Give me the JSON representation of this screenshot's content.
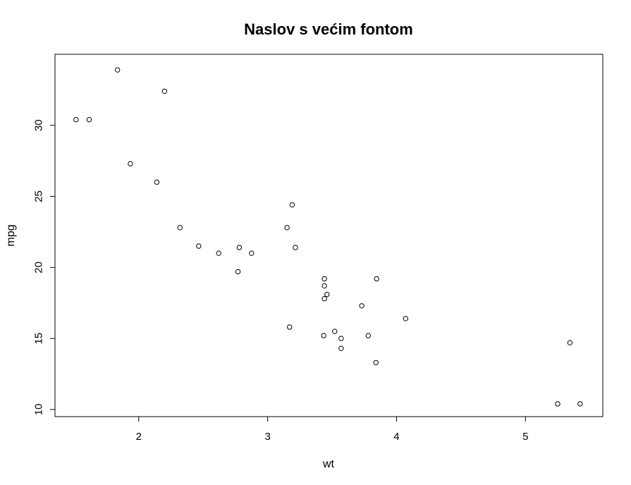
{
  "chart_data": {
    "type": "scatter",
    "title": "Naslov s većim fontom",
    "xlabel": "wt",
    "ylabel": "mpg",
    "xlim": [
      1.35,
      5.6
    ],
    "ylim": [
      9.5,
      35.0
    ],
    "xticks": [
      2,
      3,
      4,
      5
    ],
    "yticks": [
      10,
      15,
      20,
      25,
      30
    ],
    "grid": false,
    "legend": "none",
    "marker": "open-circle",
    "color": "#000000",
    "points": [
      {
        "x": 2.62,
        "y": 21.0
      },
      {
        "x": 2.875,
        "y": 21.0
      },
      {
        "x": 2.32,
        "y": 22.8
      },
      {
        "x": 3.215,
        "y": 21.4
      },
      {
        "x": 3.44,
        "y": 18.7
      },
      {
        "x": 3.46,
        "y": 18.1
      },
      {
        "x": 3.57,
        "y": 14.3
      },
      {
        "x": 3.19,
        "y": 24.4
      },
      {
        "x": 3.15,
        "y": 22.8
      },
      {
        "x": 3.44,
        "y": 19.2
      },
      {
        "x": 3.44,
        "y": 17.8
      },
      {
        "x": 4.07,
        "y": 16.4
      },
      {
        "x": 3.73,
        "y": 17.3
      },
      {
        "x": 3.78,
        "y": 15.2
      },
      {
        "x": 5.25,
        "y": 10.4
      },
      {
        "x": 5.424,
        "y": 10.4
      },
      {
        "x": 5.345,
        "y": 14.7
      },
      {
        "x": 2.2,
        "y": 32.4
      },
      {
        "x": 1.615,
        "y": 30.4
      },
      {
        "x": 1.835,
        "y": 33.9
      },
      {
        "x": 2.465,
        "y": 21.5
      },
      {
        "x": 3.52,
        "y": 15.5
      },
      {
        "x": 3.435,
        "y": 15.2
      },
      {
        "x": 3.84,
        "y": 13.3
      },
      {
        "x": 3.845,
        "y": 19.2
      },
      {
        "x": 1.935,
        "y": 27.3
      },
      {
        "x": 2.14,
        "y": 26.0
      },
      {
        "x": 1.513,
        "y": 30.4
      },
      {
        "x": 3.17,
        "y": 15.8
      },
      {
        "x": 2.77,
        "y": 19.7
      },
      {
        "x": 3.57,
        "y": 15.0
      },
      {
        "x": 2.78,
        "y": 21.4
      }
    ]
  }
}
